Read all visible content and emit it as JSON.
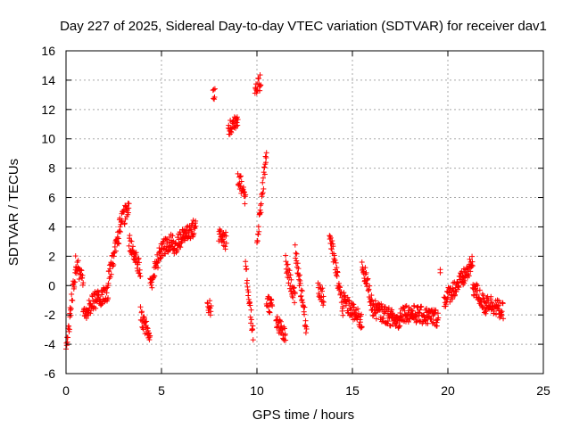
{
  "chart_data": {
    "type": "scatter",
    "title": "Day 227 of 2025, Sidereal Day-to-day VTEC variation (SDTVAR) for receiver dav1",
    "xlabel": "GPS time / hours",
    "ylabel": "SDTVAR / TECUs",
    "xlim": [
      0,
      25
    ],
    "ylim": [
      -6,
      16
    ],
    "x_ticks": [
      0,
      5,
      10,
      15,
      20,
      25
    ],
    "y_ticks": [
      -6,
      -4,
      -2,
      0,
      2,
      4,
      6,
      8,
      10,
      12,
      14,
      16
    ],
    "x_tick_labels": [
      "0",
      "5",
      "10",
      "15",
      "20",
      "25"
    ],
    "y_tick_labels": [
      "-6",
      "-4",
      "-2",
      "0",
      "2",
      "4",
      "6",
      "8",
      "10",
      "12",
      "14",
      "16"
    ],
    "grid": true,
    "marker": "+",
    "marker_color": "#ff0000",
    "series": [
      {
        "name": "dav1",
        "segments": [
          {
            "x": [
              0.0,
              0.2
            ],
            "y": [
              -4.5,
              -2.5
            ]
          },
          {
            "x": [
              0.2,
              0.5
            ],
            "y": [
              -2.0,
              1.0
            ]
          },
          {
            "x": [
              0.5,
              0.9
            ],
            "y": [
              1.5,
              0.5
            ]
          },
          {
            "x": [
              0.9,
              1.5
            ],
            "y": [
              -2.0,
              -1.0
            ]
          },
          {
            "x": [
              1.5,
              2.2
            ],
            "y": [
              -1.0,
              -0.5
            ]
          },
          {
            "x": [
              2.2,
              2.8
            ],
            "y": [
              0.5,
              3.5
            ]
          },
          {
            "x": [
              2.8,
              3.3
            ],
            "y": [
              4.0,
              5.5
            ]
          },
          {
            "x": [
              3.3,
              3.9
            ],
            "y": [
              3.0,
              1.0
            ]
          },
          {
            "x": [
              3.9,
              4.4
            ],
            "y": [
              -2.0,
              -3.5
            ]
          },
          {
            "x": [
              4.4,
              5.0
            ],
            "y": [
              0.0,
              2.5
            ]
          },
          {
            "x": [
              5.0,
              5.6
            ],
            "y": [
              2.5,
              3.0
            ]
          },
          {
            "x": [
              5.6,
              6.2
            ],
            "y": [
              2.5,
              3.5
            ]
          },
          {
            "x": [
              6.2,
              6.8
            ],
            "y": [
              3.5,
              4.0
            ]
          },
          {
            "x": [
              7.4,
              7.6
            ],
            "y": [
              -1.2,
              -1.6
            ]
          },
          {
            "x": [
              7.7,
              7.8
            ],
            "y": [
              12.8,
              12.9
            ]
          },
          {
            "x": [
              8.0,
              8.4
            ],
            "y": [
              3.5,
              3.0
            ]
          },
          {
            "x": [
              8.5,
              9.0
            ],
            "y": [
              10.5,
              11.5
            ]
          },
          {
            "x": [
              9.0,
              9.4
            ],
            "y": [
              7.5,
              6.0
            ]
          },
          {
            "x": [
              9.4,
              9.8
            ],
            "y": [
              1.5,
              -3.5
            ]
          },
          {
            "x": [
              9.9,
              10.2
            ],
            "y": [
              13.0,
              14.0
            ]
          },
          {
            "x": [
              10.0,
              10.5
            ],
            "y": [
              3.0,
              9.0
            ]
          },
          {
            "x": [
              10.5,
              10.8
            ],
            "y": [
              -1.0,
              -1.5
            ]
          },
          {
            "x": [
              11.0,
              11.5
            ],
            "y": [
              -2.5,
              -3.5
            ]
          },
          {
            "x": [
              11.5,
              12.0
            ],
            "y": [
              1.5,
              -1.0
            ]
          },
          {
            "x": [
              12.0,
              12.6
            ],
            "y": [
              2.5,
              -3.0
            ]
          },
          {
            "x": [
              13.2,
              13.5
            ],
            "y": [
              0.0,
              -1.0
            ]
          },
          {
            "x": [
              13.8,
              14.5
            ],
            "y": [
              3.5,
              -1.5
            ]
          },
          {
            "x": [
              14.5,
              15.5
            ],
            "y": [
              -1.0,
              -2.5
            ]
          },
          {
            "x": [
              15.5,
              16.0
            ],
            "y": [
              1.5,
              -1.0
            ]
          },
          {
            "x": [
              16.0,
              17.5
            ],
            "y": [
              -1.5,
              -2.5
            ]
          },
          {
            "x": [
              17.5,
              19.5
            ],
            "y": [
              -1.8,
              -2.2
            ]
          },
          {
            "x": [
              19.6,
              19.6
            ],
            "y": [
              0.8,
              0.8
            ]
          },
          {
            "x": [
              19.8,
              20.8
            ],
            "y": [
              -1.0,
              0.5
            ]
          },
          {
            "x": [
              20.8,
              21.3
            ],
            "y": [
              0.5,
              1.5
            ]
          },
          {
            "x": [
              21.3,
              22.0
            ],
            "y": [
              0.0,
              -1.5
            ]
          },
          {
            "x": [
              22.0,
              22.9
            ],
            "y": [
              -1.0,
              -1.8
            ]
          }
        ]
      }
    ]
  }
}
